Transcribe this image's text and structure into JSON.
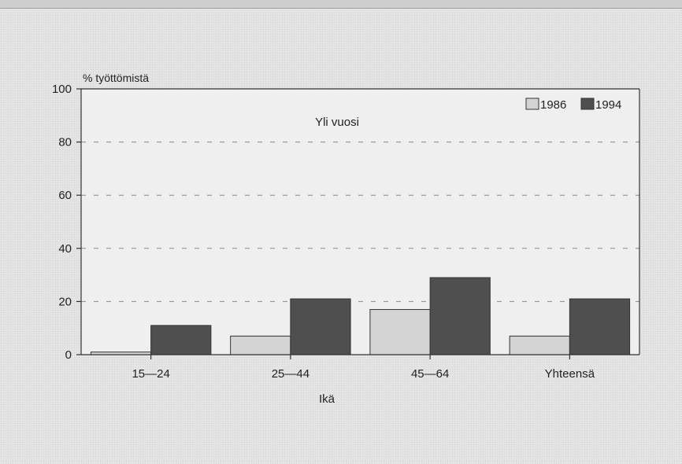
{
  "chart_data": {
    "type": "bar",
    "inner_title": "Yli vuosi",
    "ylabel": "% työttömistä",
    "xlabel": "Ikä",
    "ylim": [
      0,
      100
    ],
    "yticks": [
      0,
      20,
      40,
      60,
      80,
      100
    ],
    "grid": "dashed horizontal",
    "legend_position": "top-right",
    "categories": [
      "15—24",
      "25—44",
      "45—64",
      "Yhteensä"
    ],
    "series": [
      {
        "name": "1986",
        "color": "#d4d4d4",
        "values": [
          1,
          7,
          17,
          7
        ]
      },
      {
        "name": "1994",
        "color": "#4f4f4f",
        "values": [
          11,
          21,
          29,
          21
        ]
      }
    ]
  }
}
